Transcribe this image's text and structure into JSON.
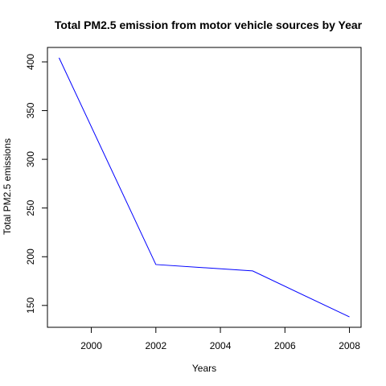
{
  "chart_data": {
    "type": "line",
    "title": "Total PM2.5 emission from motor vehicle sources by Year",
    "xlabel": "Years",
    "ylabel": "Total PM2.5 emissions",
    "x": [
      1999,
      2002,
      2005,
      2008
    ],
    "series": [
      {
        "values": [
          404.2,
          192.0,
          185.4,
          138.2
        ],
        "color": "#0000ff"
      }
    ],
    "xlim": [
      1998.64,
      2008.36
    ],
    "ylim": [
      127.56,
      414.84
    ],
    "xticks": [
      2000,
      2002,
      2004,
      2006,
      2008
    ],
    "yticks": [
      150,
      200,
      250,
      300,
      350,
      400
    ],
    "grid": false,
    "legend": "none"
  }
}
